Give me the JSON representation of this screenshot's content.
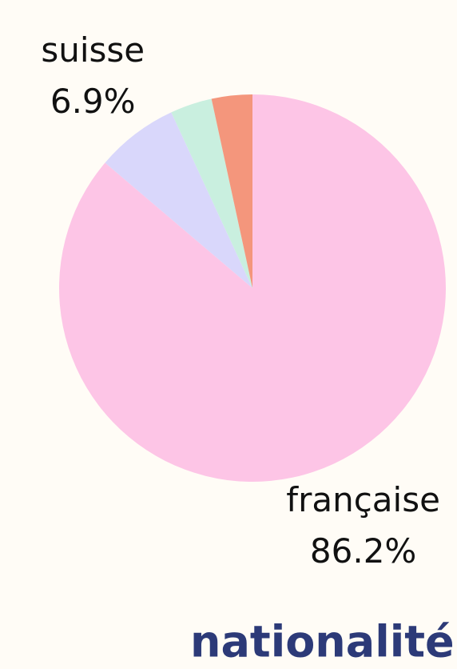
{
  "chart_data": {
    "type": "pie",
    "title": "nationalité",
    "categories": [
      "française",
      "suisse",
      null,
      null
    ],
    "values": [
      86.2,
      6.9,
      3.5,
      3.4
    ],
    "value_labels": [
      "86.2%",
      "6.9%",
      null,
      null
    ],
    "colors": [
      "#fdc5e6",
      "#d9d7fb",
      "#c9efdf",
      "#f4967c"
    ]
  }
}
